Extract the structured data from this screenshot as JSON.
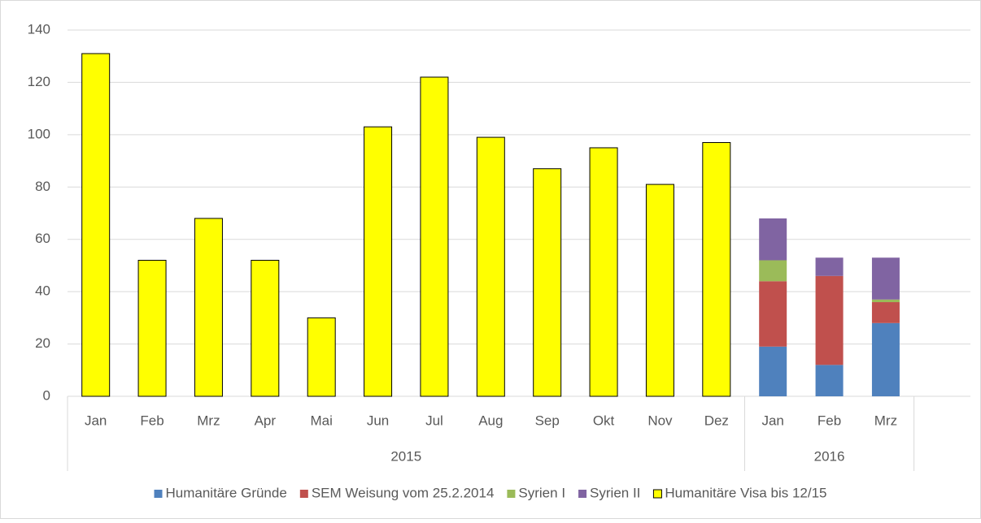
{
  "chart_data": {
    "type": "stacked_bar",
    "groups": [
      {
        "label": "2015",
        "categories": [
          "Jan",
          "Feb",
          "Mrz",
          "Apr",
          "Mai",
          "Jun",
          "Jul",
          "Aug",
          "Sep",
          "Okt",
          "Nov",
          "Dez"
        ]
      },
      {
        "label": "2016",
        "categories": [
          "Jan",
          "Feb",
          "Mrz"
        ]
      },
      {
        "label": null,
        "categories": [
          null
        ]
      }
    ],
    "series": [
      {
        "name": "Humanitäre Gründe",
        "color": "#4f81bd",
        "values": [
          null,
          null,
          null,
          null,
          null,
          null,
          null,
          null,
          null,
          null,
          null,
          null,
          19,
          12,
          28,
          null
        ]
      },
      {
        "name": "SEM Weisung vom 25.2.2014",
        "color": "#c0504d",
        "values": [
          null,
          null,
          null,
          null,
          null,
          null,
          null,
          null,
          null,
          null,
          null,
          null,
          25,
          34,
          8,
          null
        ]
      },
      {
        "name": "Syrien I",
        "color": "#9bbb59",
        "values": [
          null,
          null,
          null,
          null,
          null,
          null,
          null,
          null,
          null,
          null,
          null,
          null,
          8,
          0,
          1,
          null
        ]
      },
      {
        "name": "Syrien II",
        "color": "#8064a2",
        "values": [
          null,
          null,
          null,
          null,
          null,
          null,
          null,
          null,
          null,
          null,
          null,
          null,
          16,
          7,
          16,
          null
        ]
      },
      {
        "name": "Humanitäre Visa bis 12/15",
        "color": "#ffff00",
        "values": [
          131,
          52,
          68,
          52,
          30,
          103,
          122,
          99,
          87,
          95,
          81,
          97,
          null,
          null,
          null,
          null
        ]
      }
    ],
    "ylim": [
      0,
      140
    ],
    "yticks": [
      0,
      20,
      40,
      60,
      80,
      100,
      120,
      140
    ],
    "grid": true,
    "legend": "bottom"
  }
}
